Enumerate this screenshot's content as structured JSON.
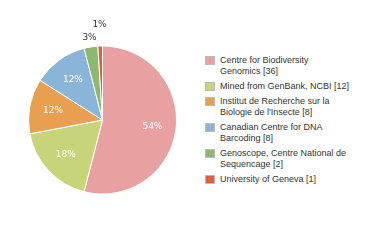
{
  "chart_data": {
    "type": "pie",
    "categories": [
      "Centre for Biodiversity\nGenomics [36]",
      "Mined from GenBank, NCBI [12]",
      "Institut de Recherche sur la\nBiologie de l'Insecte [8]",
      "Canadian Centre for DNA\nBarcoding [8]",
      "Genoscope, Centre National de\nSequencage [2]",
      "University of Geneva [1]"
    ],
    "values": [
      54,
      18,
      12,
      12,
      3,
      1
    ],
    "value_labels": [
      "54%",
      "18%",
      "12%",
      "12%",
      "3%",
      "1%"
    ],
    "colors": [
      "#e8a0a0",
      "#c8d47a",
      "#e8a050",
      "#8ab4d8",
      "#8db870",
      "#d96040"
    ],
    "data_labels": true,
    "legend": "right"
  }
}
